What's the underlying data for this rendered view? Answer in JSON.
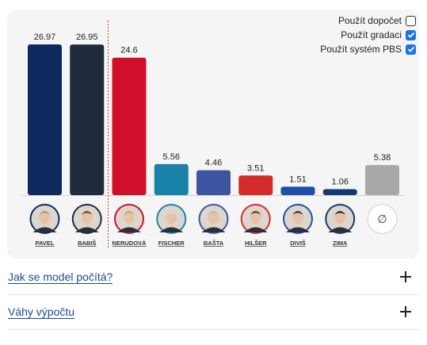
{
  "options": [
    {
      "label": "Použít dopočet",
      "checked": false
    },
    {
      "label": "Použít gradaci",
      "checked": true
    },
    {
      "label": "Použít systém PBS",
      "checked": true
    }
  ],
  "chart_data": {
    "type": "bar",
    "categories": [
      "PAVEL",
      "BABIŠ",
      "NERUDOVÁ",
      "FISCHER",
      "BAŠTA",
      "HILŠER",
      "DIVIŠ",
      "ZIMA",
      "∅"
    ],
    "values": [
      26.97,
      26.95,
      24.6,
      5.56,
      4.46,
      3.51,
      1.51,
      1.06,
      5.38
    ],
    "value_labels": [
      "26.97",
      "26.95",
      "24.6",
      "5.56",
      "4.46",
      "3.51",
      "1.51",
      "1.06",
      "5.38"
    ],
    "colors": [
      "#0e2a5c",
      "#1f2a3c",
      "#d0102a",
      "#1a82a8",
      "#3d55a0",
      "#d62b2b",
      "#1f4fa8",
      "#123a70",
      "#a8a8a8"
    ],
    "ylim": [
      0,
      26.97
    ],
    "grid": false
  },
  "candidates": [
    {
      "name": "PAVEL",
      "avatar": "pavel",
      "ring": "#0e2a5c"
    },
    {
      "name": "BABIŠ",
      "avatar": "babis",
      "ring": "#1f2a3c"
    },
    {
      "name": "NERUDOVÁ",
      "avatar": "nerudova",
      "ring": "#d0102a"
    },
    {
      "name": "FISCHER",
      "avatar": "fischer",
      "ring": "#1a82a8"
    },
    {
      "name": "BAŠTA",
      "avatar": "basta",
      "ring": "#3d55a0"
    },
    {
      "name": "HILŠER",
      "avatar": "hilser",
      "ring": "#d62b2b"
    },
    {
      "name": "DIVIŠ",
      "avatar": "divis",
      "ring": "#1f4fa8"
    },
    {
      "name": "ZIMA",
      "avatar": "zima",
      "ring": "#123a70"
    },
    {
      "name": "",
      "avatar": "empty-set",
      "ring": "#dddddd",
      "symbol": "∅"
    }
  ],
  "accordion": [
    {
      "title": "Jak se model počítá?"
    },
    {
      "title": "Váhy výpočtu"
    }
  ]
}
